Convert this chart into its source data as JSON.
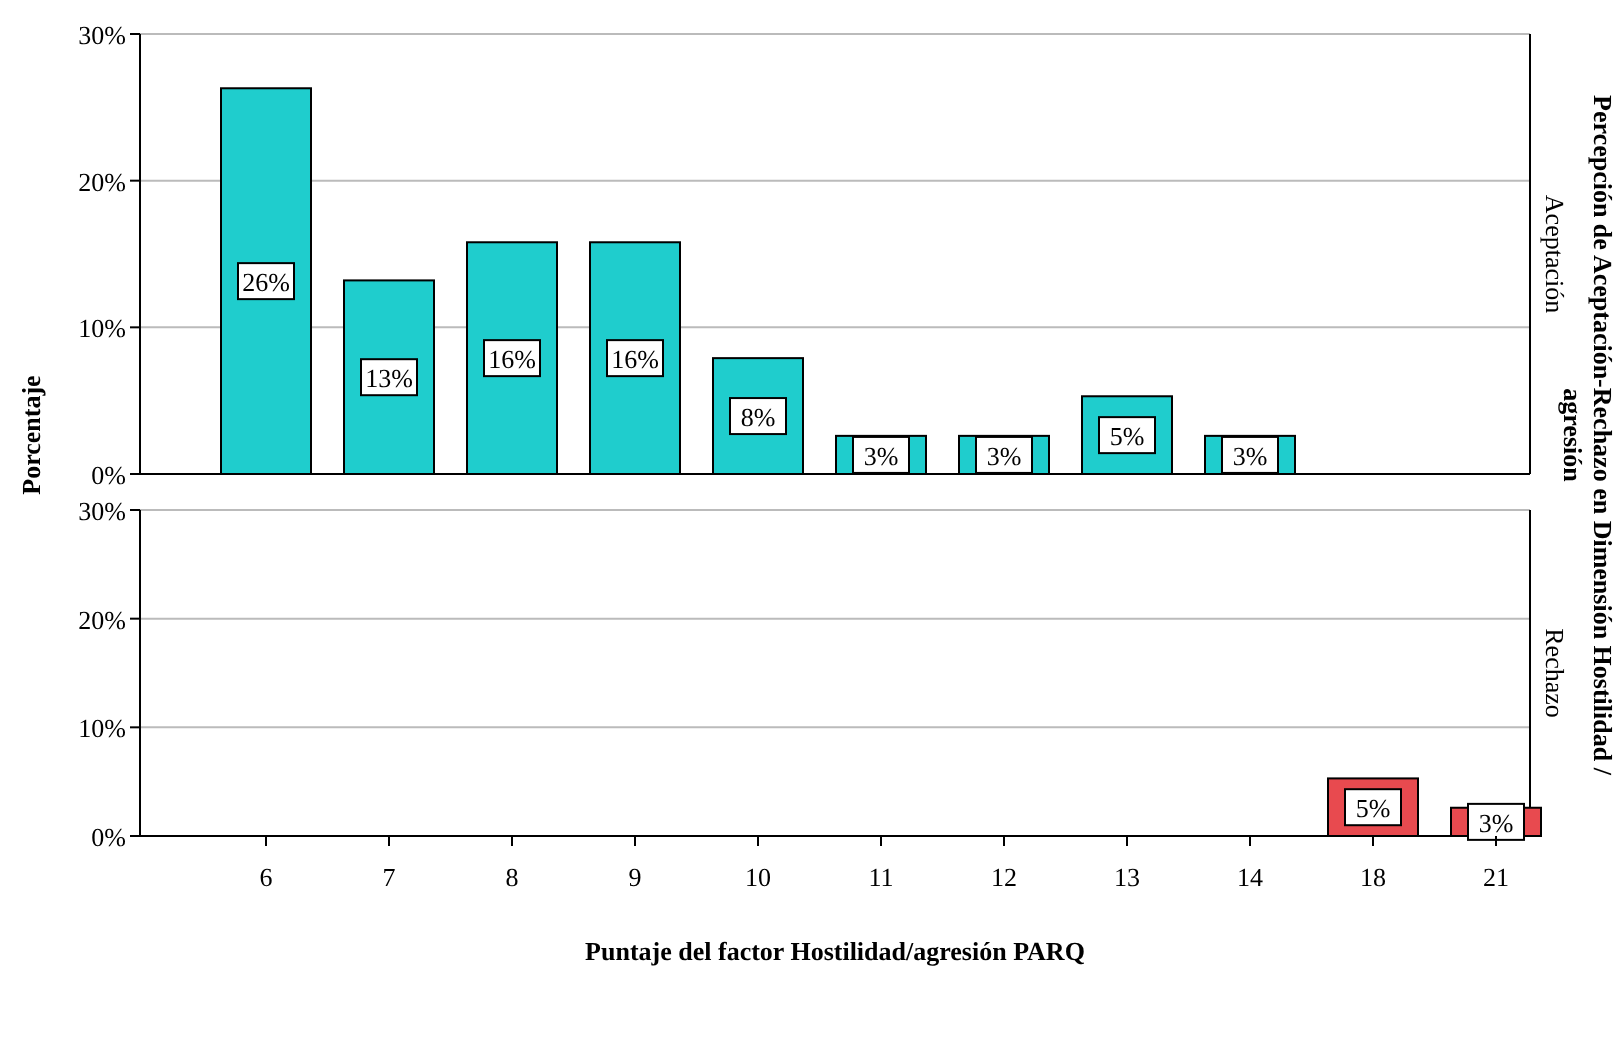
{
  "chart_data": [
    {
      "type": "bar",
      "title": "Aceptación",
      "ylabel": "Porcentaje",
      "annotations": [
        "Percepción de Aceptación-Rechazo en Dimensión Hostilidad / agresión"
      ],
      "categories": [
        "6",
        "7",
        "8",
        "9",
        "10",
        "11",
        "12",
        "13",
        "14",
        "18",
        "21"
      ],
      "series": [
        {
          "color": "#1fcdcd",
          "values": [
            26.3,
            13.2,
            15.8,
            15.8,
            7.9,
            2.6,
            2.6,
            5.3,
            2.6,
            null,
            null
          ],
          "value_labels": [
            "26%",
            "13%",
            "16%",
            "16%",
            "8%",
            "3%",
            "3%",
            "5%",
            "3%",
            null,
            null
          ]
        }
      ],
      "ylim": [
        0,
        30
      ],
      "yticks": [
        {
          "value": 0,
          "label": "0%"
        },
        {
          "value": 10,
          "label": "10%"
        },
        {
          "value": 20,
          "label": "20%"
        },
        {
          "value": 30,
          "label": "30%"
        }
      ],
      "grid": "y",
      "tick_labels": "y"
    },
    {
      "type": "bar",
      "title": "Rechazo",
      "xlabel": "Puntaje del factor Hostilidad/agresión PARQ",
      "categories": [
        "6",
        "7",
        "8",
        "9",
        "10",
        "11",
        "12",
        "13",
        "14",
        "18",
        "21"
      ],
      "series": [
        {
          "color": "#e84a4f",
          "values": [
            null,
            null,
            null,
            null,
            null,
            null,
            null,
            null,
            null,
            5.3,
            2.6
          ],
          "value_labels": [
            null,
            null,
            null,
            null,
            null,
            null,
            null,
            null,
            null,
            "5%",
            "3%"
          ]
        }
      ],
      "ylim": [
        0,
        30
      ],
      "yticks": [
        {
          "value": 0,
          "label": "0%"
        },
        {
          "value": 10,
          "label": "10%"
        },
        {
          "value": 20,
          "label": "20%"
        },
        {
          "value": 30,
          "label": "30%"
        }
      ],
      "grid": "y"
    }
  ]
}
